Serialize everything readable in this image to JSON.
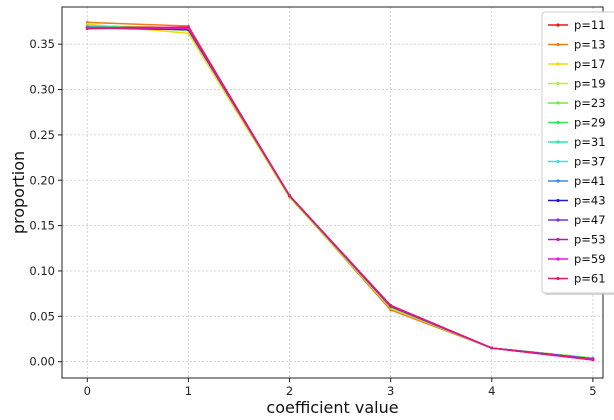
{
  "chart_data": {
    "type": "line",
    "title": "",
    "xlabel": "coefficient value",
    "ylabel": "proportion",
    "x": [
      0,
      1,
      2,
      3,
      4,
      5
    ],
    "xticks": [
      "0",
      "1",
      "2",
      "3",
      "4",
      "5"
    ],
    "yticks": [
      "0.00",
      "0.05",
      "0.10",
      "0.15",
      "0.20",
      "0.25",
      "0.30",
      "0.35"
    ],
    "xlim": [
      -0.25,
      5.1
    ],
    "ylim": [
      -0.018,
      0.391
    ],
    "grid": true,
    "legend_position": "top-right",
    "series": [
      {
        "name": "p=11",
        "color": "#e8171b",
        "values": [
          0.37,
          0.368,
          0.183,
          0.061,
          0.015,
          0.003
        ]
      },
      {
        "name": "p=13",
        "color": "#f07a19",
        "values": [
          0.374,
          0.37,
          0.182,
          0.057,
          0.015,
          0.003
        ]
      },
      {
        "name": "p=17",
        "color": "#f5d90c",
        "values": [
          0.372,
          0.362,
          0.181,
          0.059,
          0.015,
          0.004
        ]
      },
      {
        "name": "p=19",
        "color": "#bde83f",
        "values": [
          0.371,
          0.365,
          0.182,
          0.06,
          0.015,
          0.004
        ]
      },
      {
        "name": "p=23",
        "color": "#6fe84a",
        "values": [
          0.37,
          0.367,
          0.182,
          0.06,
          0.015,
          0.004
        ]
      },
      {
        "name": "p=29",
        "color": "#2ee85a",
        "values": [
          0.369,
          0.366,
          0.183,
          0.061,
          0.015,
          0.003
        ]
      },
      {
        "name": "p=31",
        "color": "#2ee8a8",
        "values": [
          0.369,
          0.366,
          0.183,
          0.061,
          0.015,
          0.003
        ]
      },
      {
        "name": "p=37",
        "color": "#3de0e0",
        "values": [
          0.368,
          0.367,
          0.183,
          0.061,
          0.015,
          0.003
        ]
      },
      {
        "name": "p=41",
        "color": "#2e8fe8",
        "values": [
          0.369,
          0.367,
          0.183,
          0.061,
          0.015,
          0.003
        ]
      },
      {
        "name": "p=43",
        "color": "#1a1ad8",
        "values": [
          0.368,
          0.366,
          0.183,
          0.061,
          0.015,
          0.003
        ]
      },
      {
        "name": "p=47",
        "color": "#7a2ee8",
        "values": [
          0.368,
          0.367,
          0.183,
          0.061,
          0.015,
          0.003
        ]
      },
      {
        "name": "p=53",
        "color": "#b21ab8",
        "values": [
          0.368,
          0.367,
          0.183,
          0.062,
          0.015,
          0.002
        ]
      },
      {
        "name": "p=59",
        "color": "#e81ae0",
        "values": [
          0.368,
          0.368,
          0.183,
          0.062,
          0.015,
          0.002
        ]
      },
      {
        "name": "p=61",
        "color": "#e8176e",
        "values": [
          0.367,
          0.369,
          0.183,
          0.062,
          0.015,
          0.002
        ]
      }
    ]
  }
}
